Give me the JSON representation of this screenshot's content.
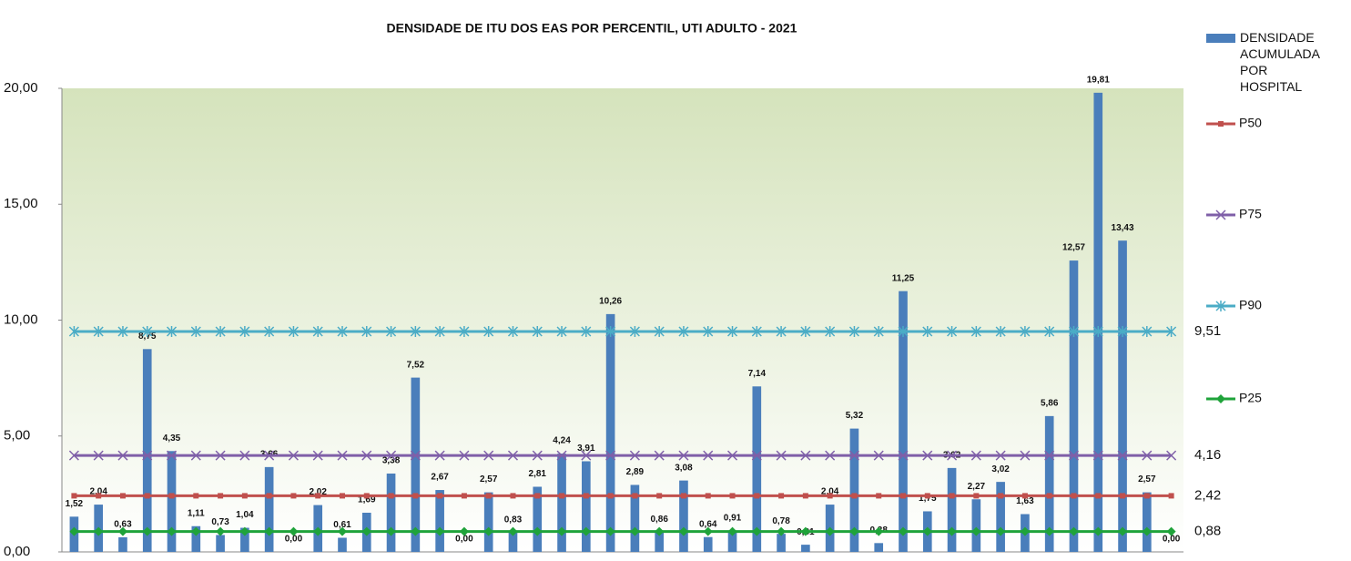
{
  "chart_data": {
    "type": "bar",
    "title": "DENSIDADE DE ITU DOS EAS POR PERCENTIL, UTI ADULTO - 2021",
    "categories": [
      null,
      null,
      null,
      null,
      null,
      null,
      null,
      null,
      null,
      null,
      null,
      null,
      null,
      null,
      null,
      null,
      null,
      null,
      null,
      null,
      null,
      null,
      null,
      null,
      null,
      null,
      null,
      null,
      null,
      null,
      null,
      null,
      null,
      null,
      null,
      null,
      null,
      null,
      null,
      null,
      null,
      null,
      null,
      null,
      null,
      null
    ],
    "ylim": [
      0,
      20
    ],
    "yticks": [
      {
        "value": 0,
        "label": "0,00"
      },
      {
        "value": 5,
        "label": "5,00"
      },
      {
        "value": 10,
        "label": "10,00"
      },
      {
        "value": 15,
        "label": "15,00"
      },
      {
        "value": 20,
        "label": "20,00"
      }
    ],
    "series": [
      {
        "name": "DENSIDADE ACUMULADA POR HOSPITAL",
        "type": "bar",
        "color": "#4a7ebb",
        "values": [
          1.52,
          2.04,
          0.63,
          8.75,
          4.35,
          1.11,
          0.73,
          1.04,
          3.66,
          0,
          2.02,
          0.61,
          1.69,
          3.38,
          7.52,
          2.67,
          0,
          2.57,
          0.83,
          2.81,
          4.24,
          3.91,
          10.26,
          2.89,
          0.86,
          3.08,
          0.64,
          0.91,
          7.14,
          0.78,
          0.31,
          2.04,
          5.32,
          0.38,
          11.25,
          1.75,
          3.62,
          2.27,
          3.02,
          1.63,
          5.86,
          12.57,
          19.81,
          13.43,
          2.57,
          0
        ],
        "value_labels": [
          "1,52",
          "2,04",
          "0,63",
          "8,75",
          "4,35",
          "1,11",
          "0,73",
          "1,04",
          "3,66",
          "0,00",
          "2,02",
          "0,61",
          "1,69",
          "3,38",
          "7,52",
          "2,67",
          "0,00",
          "2,57",
          "0,83",
          "2,81",
          "4,24",
          "3,91",
          "10,26",
          "2,89",
          "0,86",
          "3,08",
          "0,64",
          "0,91",
          "7,14",
          "0,78",
          "0,31",
          "2,04",
          "5,32",
          "0,38",
          "11,25",
          "1,75",
          "3,62",
          "2,27",
          "3,02",
          "1,63",
          "5,86",
          "12,57",
          "19,81",
          "13,43",
          "2,57",
          "0,00"
        ]
      },
      {
        "name": "P50",
        "type": "line",
        "marker": "square",
        "color": "#c0504d",
        "end_label": "2,42",
        "values": [
          2.42,
          2.42,
          2.42,
          2.42,
          2.42,
          2.42,
          2.42,
          2.42,
          2.42,
          2.42,
          2.42,
          2.42,
          2.42,
          2.42,
          2.42,
          2.42,
          2.42,
          2.42,
          2.42,
          2.42,
          2.42,
          2.42,
          2.42,
          2.42,
          2.42,
          2.42,
          2.42,
          2.42,
          2.42,
          2.42,
          2.42,
          2.42,
          2.42,
          2.42,
          2.42,
          2.42,
          2.42,
          2.42,
          2.42,
          2.42,
          2.42,
          2.42,
          2.42,
          2.42,
          2.42,
          2.42
        ]
      },
      {
        "name": "P75",
        "type": "line",
        "marker": "x",
        "color": "#7f5fa8",
        "end_label": "4,16",
        "values": [
          4.16,
          4.16,
          4.16,
          4.16,
          4.16,
          4.16,
          4.16,
          4.16,
          4.16,
          4.16,
          4.16,
          4.16,
          4.16,
          4.16,
          4.16,
          4.16,
          4.16,
          4.16,
          4.16,
          4.16,
          4.16,
          4.16,
          4.16,
          4.16,
          4.16,
          4.16,
          4.16,
          4.16,
          4.16,
          4.16,
          4.16,
          4.16,
          4.16,
          4.16,
          4.16,
          4.16,
          4.16,
          4.16,
          4.16,
          4.16,
          4.16,
          4.16,
          4.16,
          4.16,
          4.16,
          4.16
        ]
      },
      {
        "name": "P90",
        "type": "line",
        "marker": "star",
        "color": "#4bacc6",
        "end_label": "9,51",
        "values": [
          9.51,
          9.51,
          9.51,
          9.51,
          9.51,
          9.51,
          9.51,
          9.51,
          9.51,
          9.51,
          9.51,
          9.51,
          9.51,
          9.51,
          9.51,
          9.51,
          9.51,
          9.51,
          9.51,
          9.51,
          9.51,
          9.51,
          9.51,
          9.51,
          9.51,
          9.51,
          9.51,
          9.51,
          9.51,
          9.51,
          9.51,
          9.51,
          9.51,
          9.51,
          9.51,
          9.51,
          9.51,
          9.51,
          9.51,
          9.51,
          9.51,
          9.51,
          9.51,
          9.51,
          9.51,
          9.51
        ]
      },
      {
        "name": "P25",
        "type": "line",
        "marker": "diamond",
        "color": "#1fa33a",
        "end_label": "0,88",
        "values": [
          0.88,
          0.88,
          0.88,
          0.88,
          0.88,
          0.88,
          0.88,
          0.88,
          0.88,
          0.88,
          0.88,
          0.88,
          0.88,
          0.88,
          0.88,
          0.88,
          0.88,
          0.88,
          0.88,
          0.88,
          0.88,
          0.88,
          0.88,
          0.88,
          0.88,
          0.88,
          0.88,
          0.88,
          0.88,
          0.88,
          0.88,
          0.88,
          0.88,
          0.88,
          0.88,
          0.88,
          0.88,
          0.88,
          0.88,
          0.88,
          0.88,
          0.88,
          0.88,
          0.88,
          0.88,
          0.88
        ]
      }
    ]
  }
}
